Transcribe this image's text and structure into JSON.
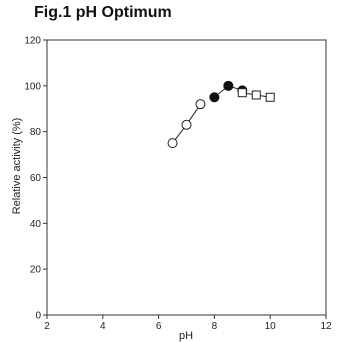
{
  "chart_data": {
    "type": "scatter",
    "title": "Fig.1 pH Optimum",
    "xlabel": "pH",
    "ylabel": "Relative activity (%)",
    "xlim": [
      2,
      12
    ],
    "ylim": [
      0,
      120
    ],
    "xticks": [
      2,
      4,
      6,
      8,
      10,
      12
    ],
    "yticks": [
      0,
      20,
      40,
      60,
      80,
      100,
      120
    ],
    "grid": false,
    "series": [
      {
        "marker": "open-circle",
        "x": [
          6.5,
          7.0,
          7.5
        ],
        "y": [
          75,
          83,
          92
        ]
      },
      {
        "marker": "filled-circle",
        "x": [
          8.0,
          8.5,
          9.0
        ],
        "y": [
          95,
          100,
          98
        ]
      },
      {
        "marker": "open-square",
        "x": [
          9.0,
          9.5,
          10.0
        ],
        "y": [
          97,
          96,
          95
        ]
      }
    ]
  }
}
